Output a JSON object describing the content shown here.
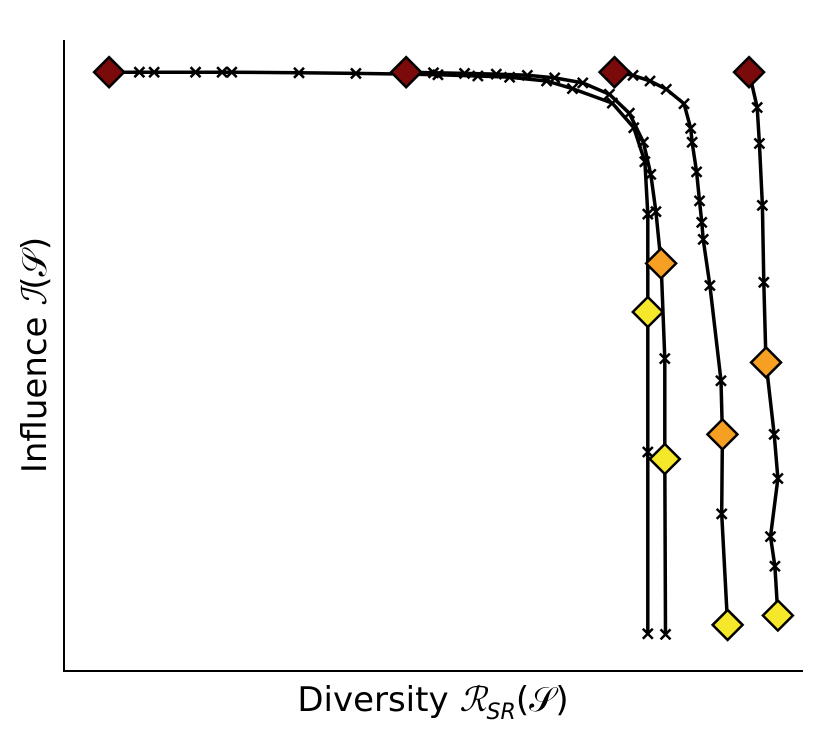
{
  "chart_data": {
    "type": "line",
    "xlabel": {
      "text": "Diversity ",
      "math": "ℛ",
      "sub": "SR",
      "arg": "(𝒮)"
    },
    "ylabel": {
      "text": "Influence ",
      "math": "ℐ",
      "arg": "(𝒮)"
    },
    "xlim": [
      0,
      1
    ],
    "ylim": [
      0,
      1
    ],
    "grid": false,
    "legend": "none",
    "colors": {
      "line": "#000000",
      "dark_red": "#7b0a0a",
      "orange": "#f5a023",
      "yellow": "#f5e82a"
    },
    "series": [
      {
        "points": [
          [
            0.061,
            0.949
          ],
          [
            0.102,
            0.949
          ],
          [
            0.122,
            0.949
          ],
          [
            0.178,
            0.949
          ],
          [
            0.214,
            0.949
          ],
          [
            0.227,
            0.949
          ],
          [
            0.318,
            0.948
          ],
          [
            0.395,
            0.947
          ],
          [
            0.465,
            0.946
          ],
          [
            0.506,
            0.945
          ],
          [
            0.56,
            0.943
          ],
          [
            0.603,
            0.941
          ],
          [
            0.653,
            0.935
          ],
          [
            0.688,
            0.923
          ],
          [
            0.742,
            0.9
          ],
          [
            0.771,
            0.861
          ],
          [
            0.786,
            0.807
          ],
          [
            0.79,
            0.724
          ],
          [
            0.79,
            0.569
          ],
          [
            0.79,
            0.347
          ],
          [
            0.79,
            0.059
          ]
        ],
        "markers": [
          {
            "index": 0,
            "color": "dark_red"
          },
          {
            "index": 18,
            "color": "yellow"
          }
        ]
      },
      {
        "points": [
          [
            0.463,
            0.949
          ],
          [
            0.5,
            0.948
          ],
          [
            0.542,
            0.947
          ],
          [
            0.585,
            0.946
          ],
          [
            0.627,
            0.944
          ],
          [
            0.664,
            0.94
          ],
          [
            0.702,
            0.932
          ],
          [
            0.738,
            0.914
          ],
          [
            0.765,
            0.884
          ],
          [
            0.784,
            0.838
          ],
          [
            0.794,
            0.787
          ],
          [
            0.801,
            0.728
          ],
          [
            0.808,
            0.646
          ],
          [
            0.813,
            0.495
          ],
          [
            0.813,
            0.336
          ],
          [
            0.814,
            0.058
          ]
        ],
        "markers": [
          {
            "index": 0,
            "color": "dark_red"
          },
          {
            "index": 12,
            "color": "orange"
          },
          {
            "index": 14,
            "color": "yellow"
          }
        ]
      },
      {
        "points": [
          [
            0.745,
            0.949
          ],
          [
            0.77,
            0.944
          ],
          [
            0.793,
            0.935
          ],
          [
            0.815,
            0.922
          ],
          [
            0.839,
            0.899
          ],
          [
            0.848,
            0.86
          ],
          [
            0.85,
            0.838
          ],
          [
            0.856,
            0.791
          ],
          [
            0.86,
            0.745
          ],
          [
            0.863,
            0.711
          ],
          [
            0.865,
            0.684
          ],
          [
            0.874,
            0.611
          ],
          [
            0.889,
            0.46
          ],
          [
            0.891,
            0.375
          ],
          [
            0.89,
            0.249
          ],
          [
            0.898,
            0.073
          ]
        ],
        "markers": [
          {
            "index": 0,
            "color": "dark_red"
          },
          {
            "index": 13,
            "color": "orange"
          },
          {
            "index": 15,
            "color": "yellow"
          }
        ]
      },
      {
        "points": [
          [
            0.927,
            0.949
          ],
          [
            0.938,
            0.893
          ],
          [
            0.941,
            0.836
          ],
          [
            0.945,
            0.738
          ],
          [
            0.947,
            0.616
          ],
          [
            0.95,
            0.489
          ],
          [
            0.961,
            0.375
          ],
          [
            0.966,
            0.305
          ],
          [
            0.956,
            0.213
          ],
          [
            0.962,
            0.166
          ],
          [
            0.966,
            0.088
          ]
        ],
        "markers": [
          {
            "index": 0,
            "color": "dark_red"
          },
          {
            "index": 5,
            "color": "orange"
          },
          {
            "index": 10,
            "color": "yellow"
          }
        ]
      }
    ]
  }
}
